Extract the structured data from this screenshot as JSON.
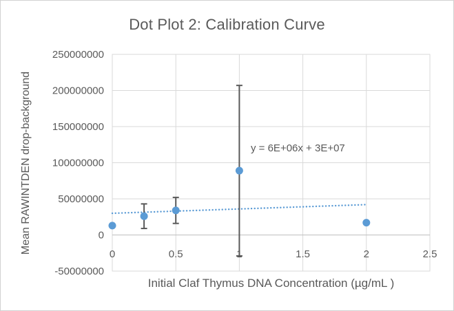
{
  "chart_data": {
    "type": "scatter",
    "title": "Dot Plot 2: Calibration Curve",
    "xlabel": "Initial Claf Thymus DNA Concentration (µg/mL )",
    "ylabel": "Mean RAWINTDEN drop-background",
    "xlim": [
      0,
      2.5
    ],
    "ylim": [
      -50000000,
      250000000
    ],
    "x_ticks": [
      0,
      0.5,
      1,
      1.5,
      2,
      2.5
    ],
    "y_ticks": [
      -50000000,
      0,
      50000000,
      100000000,
      150000000,
      200000000,
      250000000
    ],
    "grid": true,
    "legend": "none",
    "points": [
      {
        "x": 0,
        "y": 13000000,
        "error": null
      },
      {
        "x": 0.25,
        "y": 26000000,
        "error": 17000000
      },
      {
        "x": 0.5,
        "y": 34000000,
        "error": 18000000
      },
      {
        "x": 1,
        "y": 89000000,
        "error": 118000000
      },
      {
        "x": 2,
        "y": 17000000,
        "error": null
      }
    ],
    "trendline": {
      "slope": 6000000,
      "intercept": 30000000,
      "x_start": 0,
      "x_end": 2,
      "style": "dotted",
      "equation_label": "y = 6E+06x + 3E+07"
    },
    "colors": {
      "marker": "#5B9BD5",
      "trendline": "#5B9BD5",
      "error_bar": "#595959",
      "gridline": "#D9D9D9",
      "axis_line": "#BFBFBF",
      "text": "#595959"
    }
  }
}
